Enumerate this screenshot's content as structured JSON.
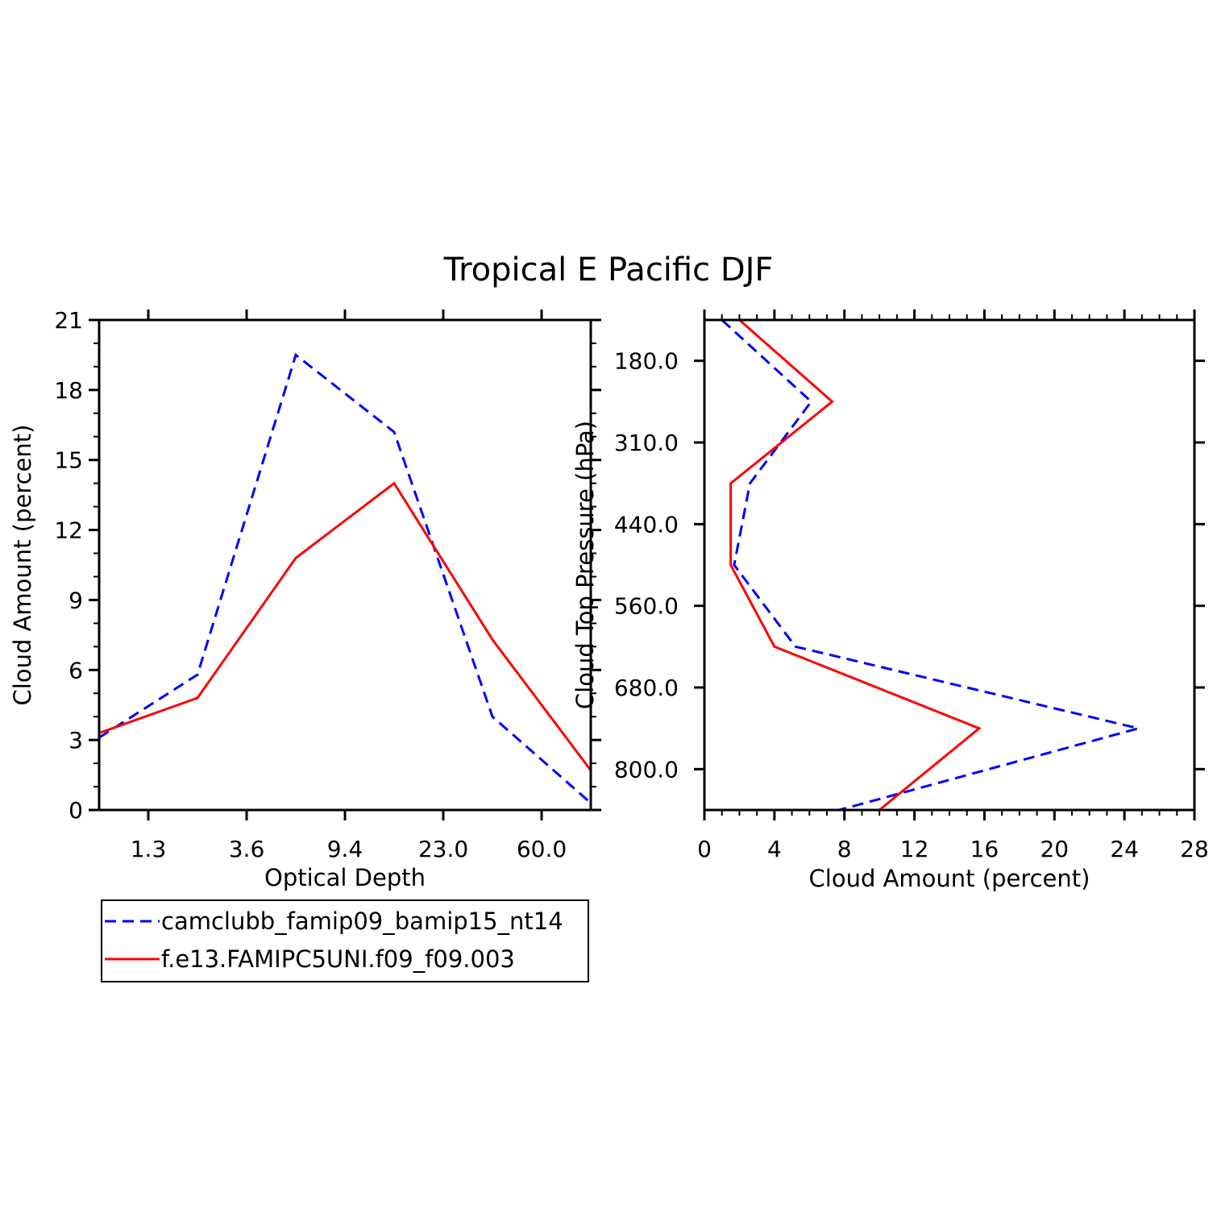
{
  "title": "Tropical E Pacific DJF",
  "colors": {
    "series_a": "#0000ff",
    "series_b": "#ff0000",
    "axis": "#000000"
  },
  "legend": {
    "placement": "below-left",
    "entries": [
      {
        "label": "camclubb_famip09_bamip15_nt14",
        "style": "dashed",
        "color": "#0000ff"
      },
      {
        "label": "f.e13.FAMIPC5UNI.f09_f09.003",
        "style": "solid",
        "color": "#ff0000"
      }
    ]
  },
  "chart_data": [
    {
      "type": "line",
      "xlabel": "Optical Depth",
      "ylabel": "Cloud Amount (percent)",
      "x_tick_labels": [
        "1.3",
        "3.6",
        "9.4",
        "23.0",
        "60.0"
      ],
      "x_range": [
        0,
        5
      ],
      "ylim": [
        0,
        21
      ],
      "y_ticks": [
        0,
        3,
        6,
        9,
        12,
        15,
        18,
        21
      ],
      "x": [
        0,
        1,
        2,
        3,
        4,
        5
      ],
      "series": [
        {
          "name": "camclubb_famip09_bamip15_nt14",
          "values": [
            3.1,
            5.8,
            19.5,
            16.2,
            4.0,
            0.3
          ]
        },
        {
          "name": "f.e13.FAMIPC5UNI.f09_f09.003",
          "values": [
            3.3,
            4.8,
            10.8,
            14.0,
            7.3,
            1.7
          ]
        }
      ]
    },
    {
      "type": "line",
      "orientation": "horizontal",
      "xlabel": "Cloud Amount (percent)",
      "ylabel": "Cloud Top Pressure (hPa)",
      "xlim": [
        0,
        28
      ],
      "x_ticks": [
        0,
        4,
        8,
        12,
        16,
        20,
        24,
        28
      ],
      "y_tick_labels": [
        "180.0",
        "310.0",
        "440.0",
        "560.0",
        "680.0",
        "800.0"
      ],
      "y_range": [
        0,
        6
      ],
      "y": [
        0,
        1,
        2,
        3,
        4,
        5,
        6
      ],
      "series": [
        {
          "name": "camclubb_famip09_bamip15_nt14",
          "values": [
            1.0,
            6.1,
            2.6,
            1.7,
            5.2,
            24.8,
            7.7
          ]
        },
        {
          "name": "f.e13.FAMIPC5UNI.f09_f09.003",
          "values": [
            2.0,
            7.3,
            1.5,
            1.5,
            4.0,
            15.7,
            10.0
          ]
        }
      ]
    }
  ]
}
